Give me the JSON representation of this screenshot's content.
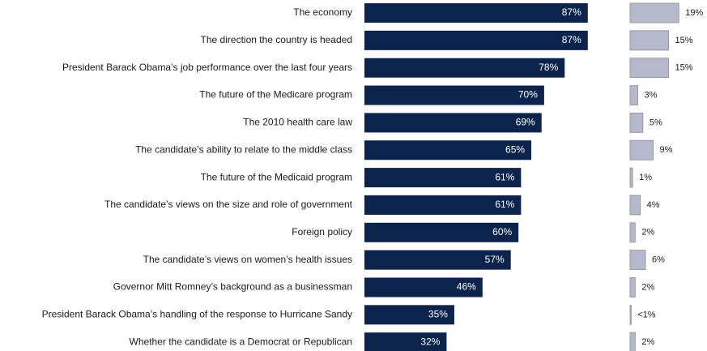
{
  "chart_data": {
    "type": "bar",
    "orientation": "horizontal",
    "categories": [
      "The economy",
      "The direction the country is headed",
      "President Barack Obama’s job performance over the last four years",
      "The future of the Medicare program",
      "The 2010 health care law",
      "The candidate’s ability to relate to the middle class",
      "The future of the Medicaid program",
      "The candidate’s views on the size and role of government",
      "Foreign policy",
      "The candidate’s views on women’s health issues",
      "Governor Mitt Romney’s background as a businessman",
      "President Barack Obama’s handling of the response to Hurricane Sandy",
      "Whether the candidate is a Democrat or Republican"
    ],
    "series": [
      {
        "color": "#0c234b",
        "values": [
          87,
          87,
          78,
          70,
          69,
          65,
          61,
          61,
          60,
          57,
          46,
          35,
          32
        ],
        "value_labels": [
          "87%",
          "87%",
          "78%",
          "70%",
          "69%",
          "65%",
          "61%",
          "61%",
          "60%",
          "57%",
          "46%",
          "35%",
          "32%"
        ]
      },
      {
        "color": "#b6b8cc",
        "values": [
          19,
          15,
          15,
          3,
          5,
          9,
          1,
          4,
          2,
          6,
          2,
          0.4,
          2
        ],
        "value_labels": [
          "19%",
          "15%",
          "15%",
          "3%",
          "5%",
          "9%",
          "1%",
          "4%",
          "2%",
          "6%",
          "2%",
          "<1%",
          "2%"
        ]
      }
    ]
  }
}
